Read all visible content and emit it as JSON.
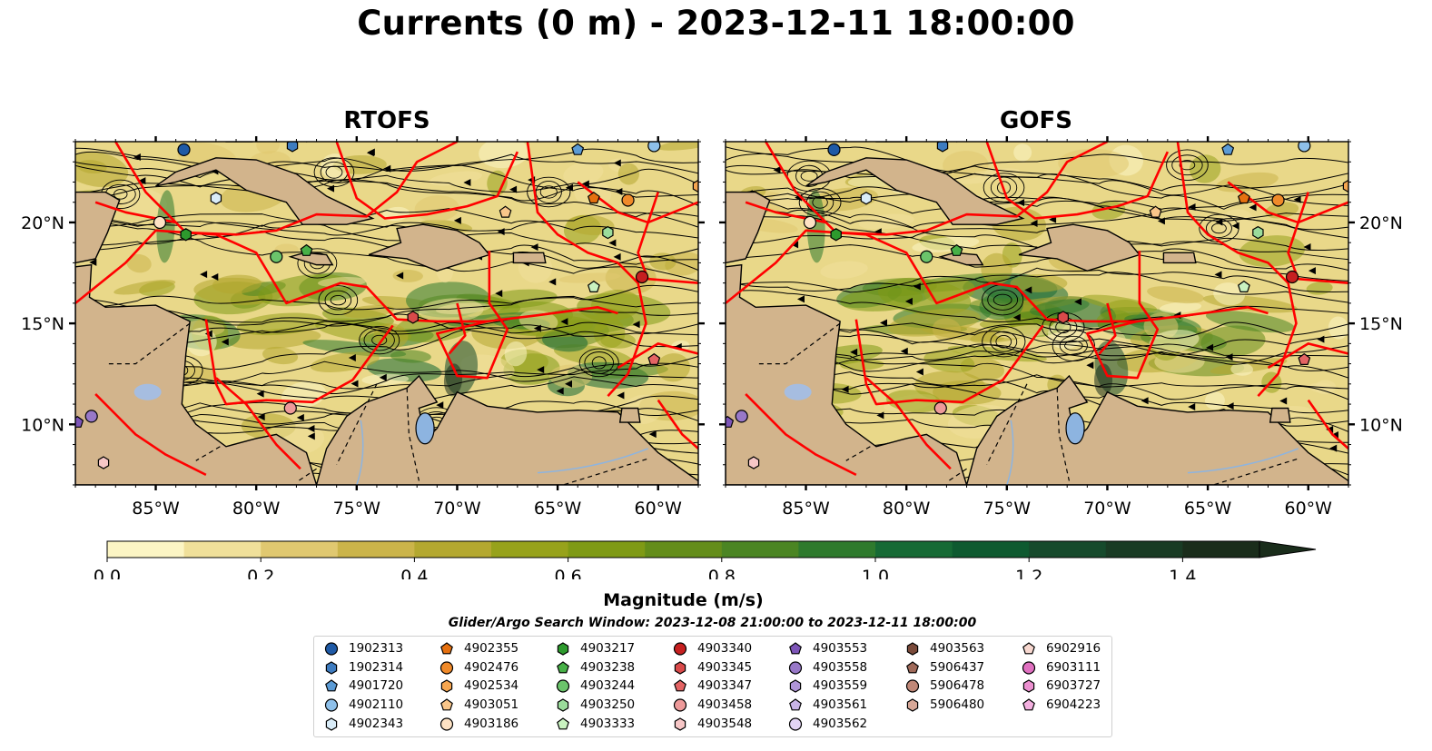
{
  "title": "Currents (0 m) - 2023-12-11 18:00:00",
  "panels": [
    {
      "title": "RTOFS"
    },
    {
      "title": "GOFS"
    }
  ],
  "map": {
    "lon_range": [
      -89,
      -58
    ],
    "lat_range": [
      7,
      24
    ],
    "lon_ticks": [
      "85°W",
      "80°W",
      "75°W",
      "70°W",
      "65°W",
      "60°W"
    ],
    "lat_ticks": [
      "20°N",
      "15°N",
      "10°N"
    ],
    "land_color": "#d2b48c",
    "eez_color": "#ff0000",
    "streamline_color": "#000000"
  },
  "colorbar": {
    "label": "Magnitude (m/s)",
    "min": 0.0,
    "max": 1.5,
    "extend": "max",
    "tick_labels": [
      "0.0",
      "0.2",
      "0.4",
      "0.6",
      "0.8",
      "1.0",
      "1.2",
      "1.4"
    ],
    "colors": [
      "#fcf5c4",
      "#f0e09a",
      "#e0c870",
      "#cbb44a",
      "#b4a830",
      "#97a21b",
      "#7f9a15",
      "#648d1a",
      "#4b8523",
      "#2e7a2d",
      "#166a35",
      "#0e5a30",
      "#164a2c",
      "#193b24",
      "#1a2d1b"
    ]
  },
  "search_window": "Glider/Argo Search Window: 2023-12-08 21:00:00 to 2023-12-11 18:00:00",
  "legend": {
    "columns": [
      [
        {
          "id": "1902313",
          "marker": "circle",
          "color": "#1f5aa6"
        },
        {
          "id": "1902314",
          "marker": "hexagon",
          "color": "#3e7cc0"
        },
        {
          "id": "4901720",
          "marker": "pentagon",
          "color": "#5b9bd5"
        },
        {
          "id": "4902110",
          "marker": "circle",
          "color": "#8ec0ea"
        },
        {
          "id": "4902343",
          "marker": "hexagon",
          "color": "#d9ecf8"
        }
      ],
      [
        {
          "id": "4902355",
          "marker": "pentagon",
          "color": "#e6700f"
        },
        {
          "id": "4902476",
          "marker": "circle",
          "color": "#f08a2a"
        },
        {
          "id": "4902534",
          "marker": "hexagon",
          "color": "#f6a650"
        },
        {
          "id": "4903051",
          "marker": "pentagon",
          "color": "#f9c68a"
        },
        {
          "id": "4903186",
          "marker": "circle",
          "color": "#fde2c4"
        }
      ],
      [
        {
          "id": "4903217",
          "marker": "hexagon",
          "color": "#2d9a2d"
        },
        {
          "id": "4903238",
          "marker": "pentagon",
          "color": "#47b047"
        },
        {
          "id": "4903244",
          "marker": "circle",
          "color": "#6bc46b"
        },
        {
          "id": "4903250",
          "marker": "hexagon",
          "color": "#9bdc9b"
        },
        {
          "id": "4903333",
          "marker": "pentagon",
          "color": "#c9f2c0"
        }
      ],
      [
        {
          "id": "4903340",
          "marker": "circle",
          "color": "#c62020"
        },
        {
          "id": "4903345",
          "marker": "hexagon",
          "color": "#d94a4a"
        },
        {
          "id": "4903347",
          "marker": "pentagon",
          "color": "#e46464"
        },
        {
          "id": "4903458",
          "marker": "circle",
          "color": "#ee9a9a"
        },
        {
          "id": "4903548",
          "marker": "hexagon",
          "color": "#f6c6c6"
        }
      ],
      [
        {
          "id": "4903553",
          "marker": "pentagon",
          "color": "#7d55b8"
        },
        {
          "id": "4903558",
          "marker": "circle",
          "color": "#9878c8"
        },
        {
          "id": "4903559",
          "marker": "hexagon",
          "color": "#b095d8"
        },
        {
          "id": "4903561",
          "marker": "pentagon",
          "color": "#c8b4e6"
        },
        {
          "id": "4903562",
          "marker": "circle",
          "color": "#e2d4f4"
        }
      ],
      [
        {
          "id": "4903563",
          "marker": "hexagon",
          "color": "#7a4a3a"
        },
        {
          "id": "5906437",
          "marker": "pentagon",
          "color": "#a06a5a"
        },
        {
          "id": "5906478",
          "marker": "circle",
          "color": "#c08878"
        },
        {
          "id": "5906480",
          "marker": "hexagon",
          "color": "#d8a898"
        }
      ],
      [
        {
          "id": "6902916",
          "marker": "pentagon",
          "color": "#f8d8d0"
        },
        {
          "id": "6903111",
          "marker": "circle",
          "color": "#e070c0"
        },
        {
          "id": "6903727",
          "marker": "hexagon",
          "color": "#ec90d0"
        },
        {
          "id": "6904223",
          "marker": "pentagon",
          "color": "#f4b0e0"
        }
      ]
    ]
  }
}
